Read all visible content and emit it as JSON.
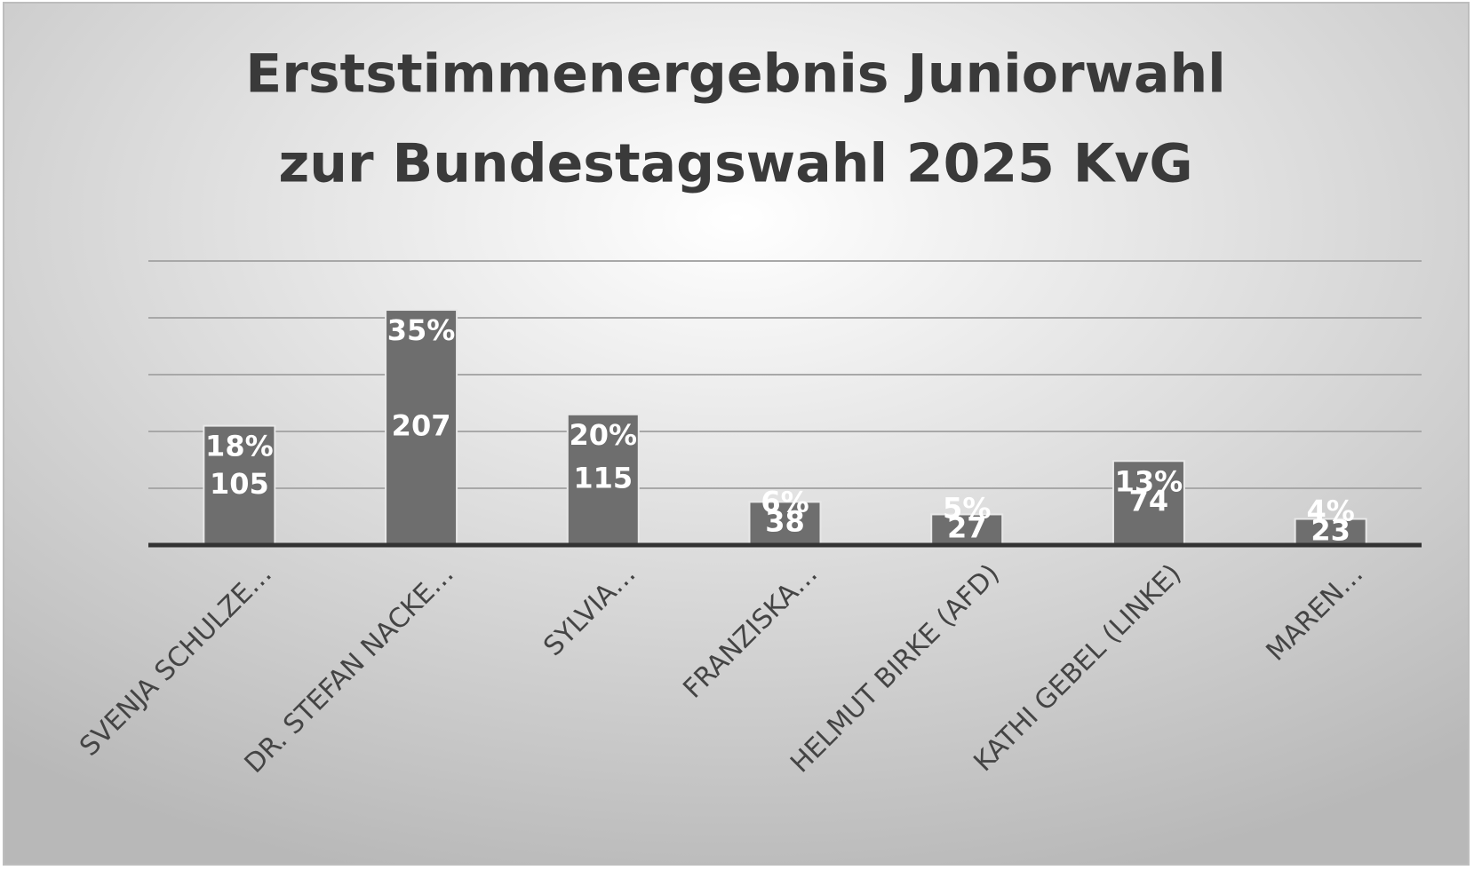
{
  "chart_data": {
    "type": "bar",
    "title_lines": [
      "Erststimmenergebnis Juniorwahl",
      "zur Bundestagswahl 2025 KvG"
    ],
    "categories": [
      "SVENJA SCHULZE…",
      "DR. STEFAN NACKE…",
      "SYLVIA…",
      "FRANZISKA…",
      "HELMUT BIRKE (AFD)",
      "KATHI GEBEL (LINKE)",
      "MAREN…"
    ],
    "values": [
      105,
      207,
      115,
      38,
      27,
      74,
      23
    ],
    "share_labels": [
      "18%",
      "35%",
      "20%",
      "6%",
      "5%",
      "13%",
      "4%"
    ],
    "color": "#6e6e6e",
    "ylim": [
      0,
      250
    ],
    "yticks": [
      0,
      50,
      100,
      150,
      200,
      250
    ],
    "grid": true
  }
}
